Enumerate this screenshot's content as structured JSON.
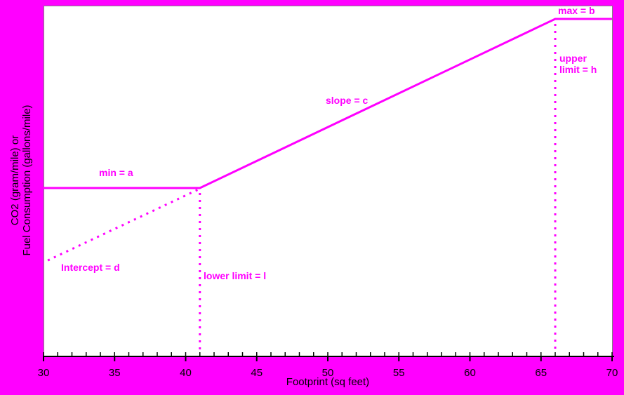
{
  "chart_data": {
    "type": "line",
    "title": "",
    "xlabel": "Footprint (sq feet)",
    "ylabel_line1": "CO2 (gram/mile) or",
    "ylabel_line2": "Fuel Consumption (gallons/mile)",
    "xlim": [
      30,
      70
    ],
    "x_major_ticks": [
      "30",
      "35",
      "40",
      "45",
      "50",
      "55",
      "60",
      "65",
      "70"
    ],
    "x_major_tick_values": [
      30,
      35,
      40,
      45,
      50,
      55,
      60,
      65,
      70
    ],
    "x_minor_tick_step": 1,
    "grid": false,
    "legend": "none",
    "curve": {
      "description": "piecewise linear standard curve: flat at min, sloped between lower and upper footprint limits, flat at max",
      "lower_limit_x": 41,
      "upper_limit_x": 66,
      "min_level_frac": 0.479,
      "max_level_frac": 0.962,
      "points": [
        [
          30,
          0.479
        ],
        [
          41,
          0.479
        ],
        [
          66,
          0.962
        ],
        [
          70,
          0.962
        ]
      ]
    },
    "intercept_extension": {
      "x_start": 30.3,
      "x_end": 41
    },
    "reference_lines": [
      {
        "name": "lower-limit-vertical",
        "x": 41,
        "style": "dotted"
      },
      {
        "name": "upper-limit-vertical",
        "x": 66,
        "style": "dotted"
      }
    ],
    "annotations": [
      {
        "name": "max",
        "text": "max = b"
      },
      {
        "name": "upper-limit",
        "text_line1": "upper",
        "text_line2": "limit = h"
      },
      {
        "name": "slope",
        "text": "slope = c"
      },
      {
        "name": "min",
        "text": "min = a"
      },
      {
        "name": "intercept",
        "text": "Intercept = d"
      },
      {
        "name": "lower-limit",
        "text": "lower limit = l"
      }
    ],
    "colors": {
      "background": "#FF00FF",
      "plot_background": "#FFFFFF",
      "plot_border": "#848284",
      "curve": "#FF00FF",
      "annotation_text": "#FF00FF",
      "axis": "#000000",
      "axis_text": "#000000"
    }
  }
}
